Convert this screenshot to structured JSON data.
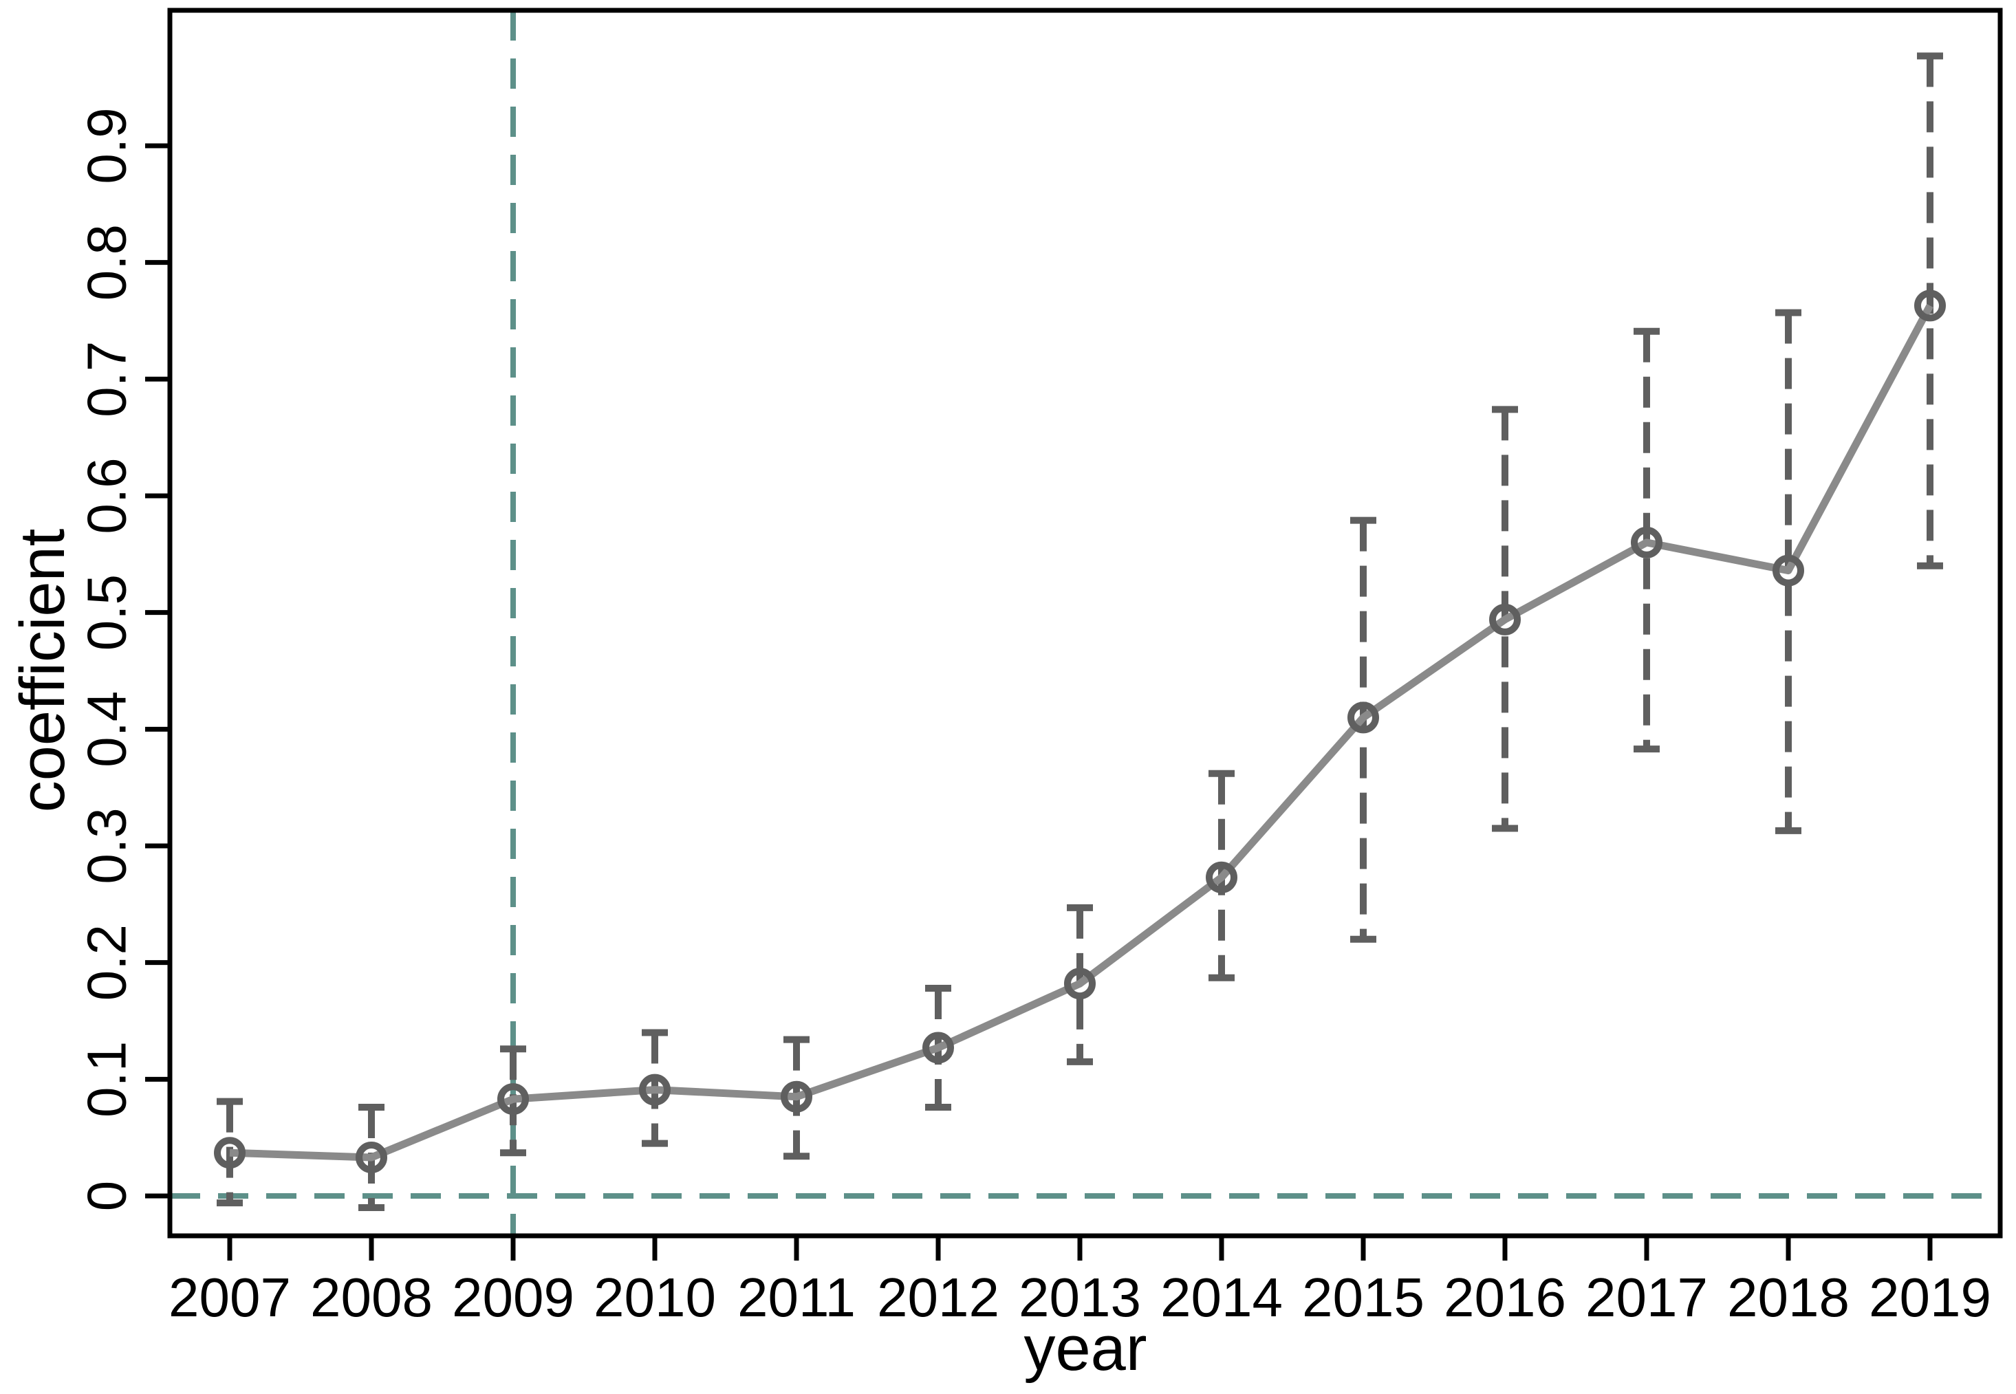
{
  "figure": {
    "type": "coefficient-plot",
    "title": ""
  },
  "chart_data": {
    "type": "line",
    "title": "",
    "xlabel": "year",
    "ylabel": "coefficient",
    "x": [
      2007,
      2008,
      2009,
      2010,
      2011,
      2012,
      2013,
      2014,
      2015,
      2016,
      2017,
      2018,
      2019
    ],
    "series": [
      {
        "name": "coefficient",
        "values": [
          0.037,
          0.033,
          0.083,
          0.091,
          0.085,
          0.127,
          0.182,
          0.273,
          0.41,
          0.494,
          0.56,
          0.536,
          0.763
        ]
      }
    ],
    "ci_lower": [
      -0.006,
      -0.01,
      0.037,
      0.045,
      0.034,
      0.076,
      0.115,
      0.187,
      0.22,
      0.315,
      0.383,
      0.313,
      0.54
    ],
    "ci_upper": [
      0.081,
      0.076,
      0.126,
      0.14,
      0.134,
      0.178,
      0.247,
      0.362,
      0.579,
      0.674,
      0.741,
      0.757,
      0.977
    ],
    "x_tick_labels": [
      "2007",
      "2008",
      "2009",
      "2010",
      "2011",
      "2012",
      "2013",
      "2014",
      "2015",
      "2016",
      "2017",
      "2018",
      "2019"
    ],
    "y_tick_values": [
      0,
      0.1,
      0.2,
      0.3,
      0.4,
      0.5,
      0.6,
      0.7,
      0.8,
      0.9
    ],
    "y_tick_labels": [
      "0",
      "0.1",
      "0.2",
      "0.3",
      "0.4",
      "0.5",
      "0.6",
      "0.7",
      "0.8",
      "0.9"
    ],
    "ylim": [
      -0.034,
      1.016
    ],
    "xlim": [
      2006.58,
      2019.51
    ],
    "ref_line_y": 0,
    "ref_line_x": 2009,
    "grid": false,
    "legend": "none",
    "marker": "hollow-circle",
    "ci_style": "dashed-with-caps",
    "colors": {
      "line": "#8a8a8a",
      "marker": "#5f5f5f",
      "ci": "#5f5f5f",
      "reference": "#5d9089",
      "axis": "#000000",
      "background": "#ffffff"
    }
  }
}
